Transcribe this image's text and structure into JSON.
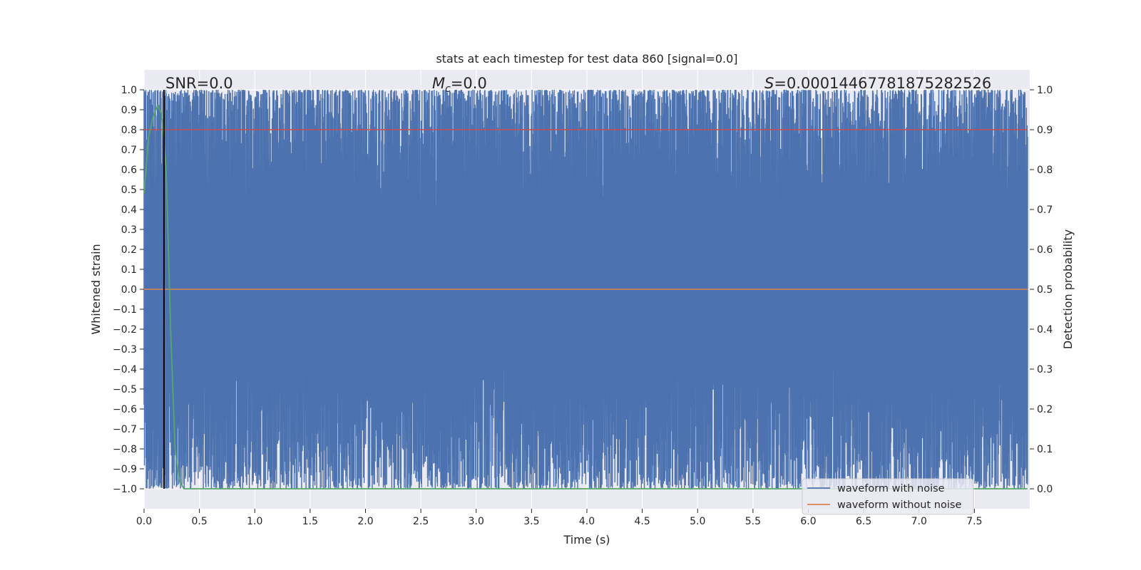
{
  "chart_data": {
    "type": "line",
    "title": "stats at each timestep for test data 860 [signal=0.0]",
    "xlabel": "Time (s)",
    "ylabel": "Whitened strain",
    "y2label": "Detection probability",
    "xlim": [
      0.0,
      8.0
    ],
    "ylim": [
      -1.1,
      1.1
    ],
    "y2lim": [
      -0.05,
      1.05
    ],
    "xticks": [
      "0.0",
      "0.5",
      "1.0",
      "1.5",
      "2.0",
      "2.5",
      "3.0",
      "3.5",
      "4.0",
      "4.5",
      "5.0",
      "5.5",
      "6.0",
      "6.5",
      "7.0",
      "7.5"
    ],
    "yticks": [
      "1.0",
      "0.9",
      "0.8",
      "0.7",
      "0.6",
      "0.5",
      "0.4",
      "0.3",
      "0.2",
      "0.1",
      "0.0",
      "−0.1",
      "−0.2",
      "−0.3",
      "−0.4",
      "−0.5",
      "−0.6",
      "−0.7",
      "−0.8",
      "−0.9",
      "−1.0"
    ],
    "y2ticks": [
      "1.0",
      "0.9",
      "0.8",
      "0.7",
      "0.6",
      "0.5",
      "0.4",
      "0.3",
      "0.2",
      "0.1",
      "0.0"
    ],
    "grid": true,
    "annotations": {
      "snr": "SNR=0.0",
      "mc_symbol": "M",
      "mc_sub": "c",
      "mc_value": "=0.0",
      "s_symbol": "S",
      "s_value": "=0.00014467781875282526"
    },
    "series": [
      {
        "name": "waveform with noise",
        "color": "#4c72b0",
        "description_axis": "left",
        "band_range": [
          -1.0,
          1.0
        ]
      },
      {
        "name": "waveform without noise",
        "color": "#dd8452",
        "x": [
          0.0,
          8.0
        ],
        "y": [
          0.0,
          0.0
        ]
      }
    ],
    "threshold": {
      "color": "#c44e52",
      "y2": 0.9
    },
    "detection_probability": {
      "color": "#55a868",
      "x": [
        0.0,
        0.04,
        0.08,
        0.12,
        0.16,
        0.2,
        0.24,
        0.28,
        0.32,
        0.36,
        0.4,
        8.0
      ],
      "y": [
        0.74,
        0.88,
        0.93,
        0.96,
        0.94,
        0.8,
        0.4,
        0.1,
        0.02,
        0.0,
        0.0,
        0.0
      ]
    },
    "vline": {
      "x": 0.18,
      "color": "#000000"
    },
    "legend_position": "lower-right"
  }
}
